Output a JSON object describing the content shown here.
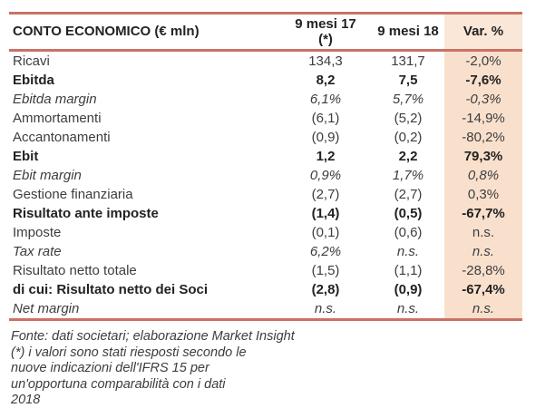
{
  "colors": {
    "accent_line": "#cb7166",
    "var_column_bg": "#f9e0cd",
    "var_header_bg": "#fae7d8",
    "text": "#3d3d3d"
  },
  "table": {
    "title": "CONTO ECONOMICO (€ mln)",
    "col17_line1": "9 mesi 17",
    "col17_line2": "(*)",
    "col18": "9 mesi 18",
    "col_var": "Var. %",
    "rows": [
      {
        "label": "Ricavi",
        "v17": "134,3",
        "v18": "131,7",
        "var": "-2,0%",
        "style": "normal"
      },
      {
        "label": "Ebitda",
        "v17": "8,2",
        "v18": "7,5",
        "var": "-7,6%",
        "style": "bold"
      },
      {
        "label": "Ebitda margin",
        "v17": "6,1%",
        "v18": "5,7%",
        "var": "-0,3%",
        "style": "italic"
      },
      {
        "label": "Ammortamenti",
        "v17": "(6,1)",
        "v18": "(5,2)",
        "var": "-14,9%",
        "style": "normal"
      },
      {
        "label": "Accantonamenti",
        "v17": "(0,9)",
        "v18": "(0,2)",
        "var": "-80,2%",
        "style": "normal"
      },
      {
        "label": "Ebit",
        "v17": "1,2",
        "v18": "2,2",
        "var": "79,3%",
        "style": "bold"
      },
      {
        "label": "Ebit margin",
        "v17": "0,9%",
        "v18": "1,7%",
        "var": "0,8%",
        "style": "italic"
      },
      {
        "label": "Gestione finanziaria",
        "v17": "(2,7)",
        "v18": "(2,7)",
        "var": "0,3%",
        "style": "normal"
      },
      {
        "label": "Risultato ante imposte",
        "v17": "(1,4)",
        "v18": "(0,5)",
        "var": "-67,7%",
        "style": "bold"
      },
      {
        "label": "Imposte",
        "v17": "(0,1)",
        "v18": "(0,6)",
        "var": "n.s.",
        "style": "normal"
      },
      {
        "label": "Tax rate",
        "v17": "6,2%",
        "v18": "n.s.",
        "var": "n.s.",
        "style": "italic"
      },
      {
        "label": "Risultato netto totale",
        "v17": "(1,5)",
        "v18": "(1,1)",
        "var": "-28,8%",
        "style": "normal"
      },
      {
        "label": "di cui: Risultato netto dei Soci",
        "v17": "(2,8)",
        "v18": "(0,9)",
        "var": "-67,4%",
        "style": "bold"
      },
      {
        "label": "Net margin",
        "v17": "n.s.",
        "v18": "n.s.",
        "var": "n.s.",
        "style": "italic"
      }
    ]
  },
  "footnote": {
    "lines": [
      "Fonte: dati societari; elaborazione Market Insight",
      "(*) i valori sono stati riesposti secondo le",
      "nuove indicazioni dell'IFRS 15  per",
      "un'opportuna comparabilità con i dati",
      "2018"
    ]
  }
}
